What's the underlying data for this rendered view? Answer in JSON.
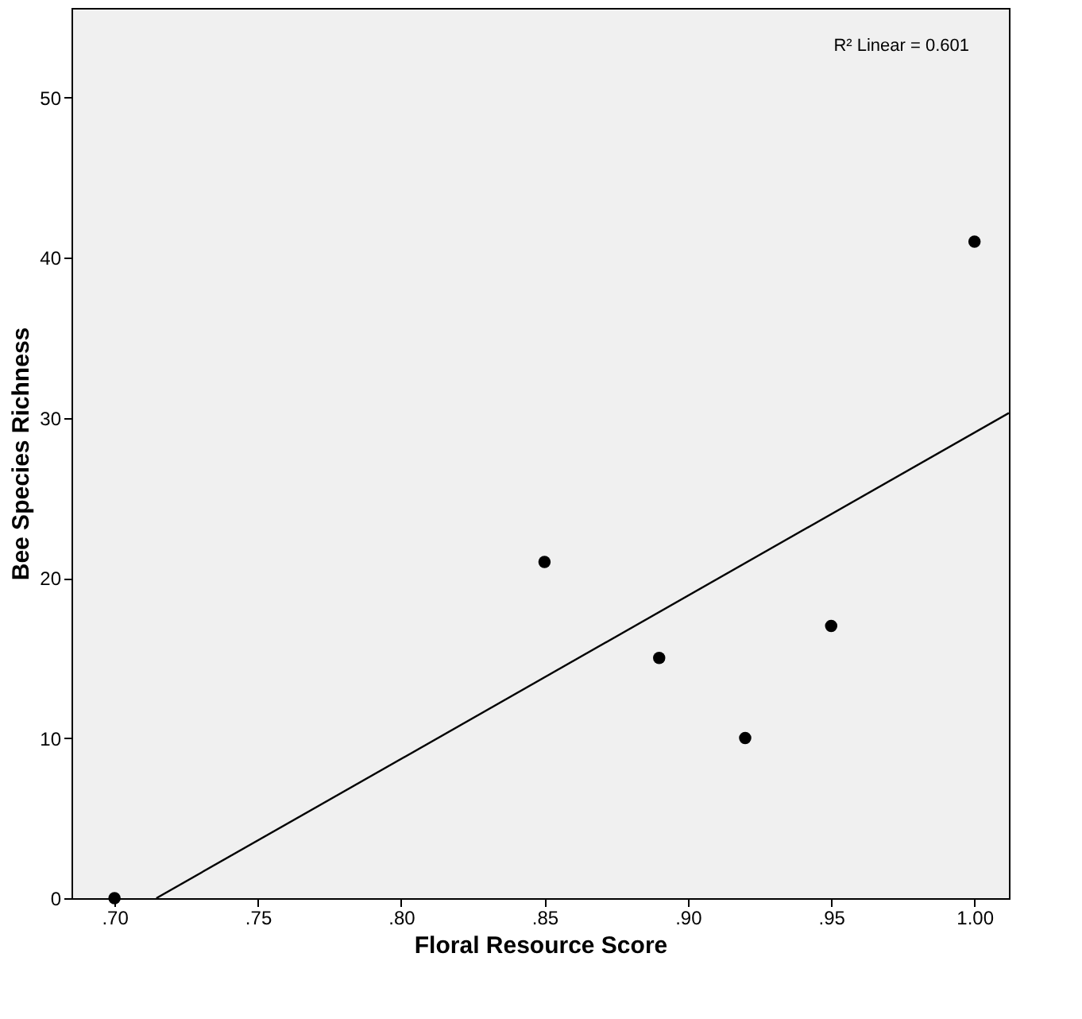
{
  "chart_data": {
    "type": "scatter",
    "xlabel": "Floral Resource Score",
    "ylabel": "Bee Species Richness",
    "xlim": [
      0.685,
      1.012
    ],
    "ylim": [
      0,
      55.6
    ],
    "xticks": [
      {
        "value": 0.7,
        "label": ".70"
      },
      {
        "value": 0.75,
        "label": ".75"
      },
      {
        "value": 0.8,
        "label": ".80"
      },
      {
        "value": 0.85,
        "label": ".85"
      },
      {
        "value": 0.9,
        "label": ".90"
      },
      {
        "value": 0.95,
        "label": ".95"
      },
      {
        "value": 1.0,
        "label": "1.00"
      }
    ],
    "yticks": [
      0,
      10,
      20,
      30,
      40,
      50
    ],
    "grid": false,
    "marker": "circle",
    "annotations": [
      "R² Linear = 0.601"
    ],
    "series": [
      {
        "color": "#000000",
        "x": [
          0.7,
          0.85,
          0.89,
          0.92,
          0.95,
          1.0
        ],
        "values": [
          0,
          21,
          15,
          10,
          17,
          41
        ]
      },
      {
        "type": "line",
        "color": "#000000",
        "line_style": "solid",
        "marker": "none",
        "x": [
          0.7146,
          1.012
        ],
        "values": [
          0,
          30.3
        ]
      }
    ]
  }
}
